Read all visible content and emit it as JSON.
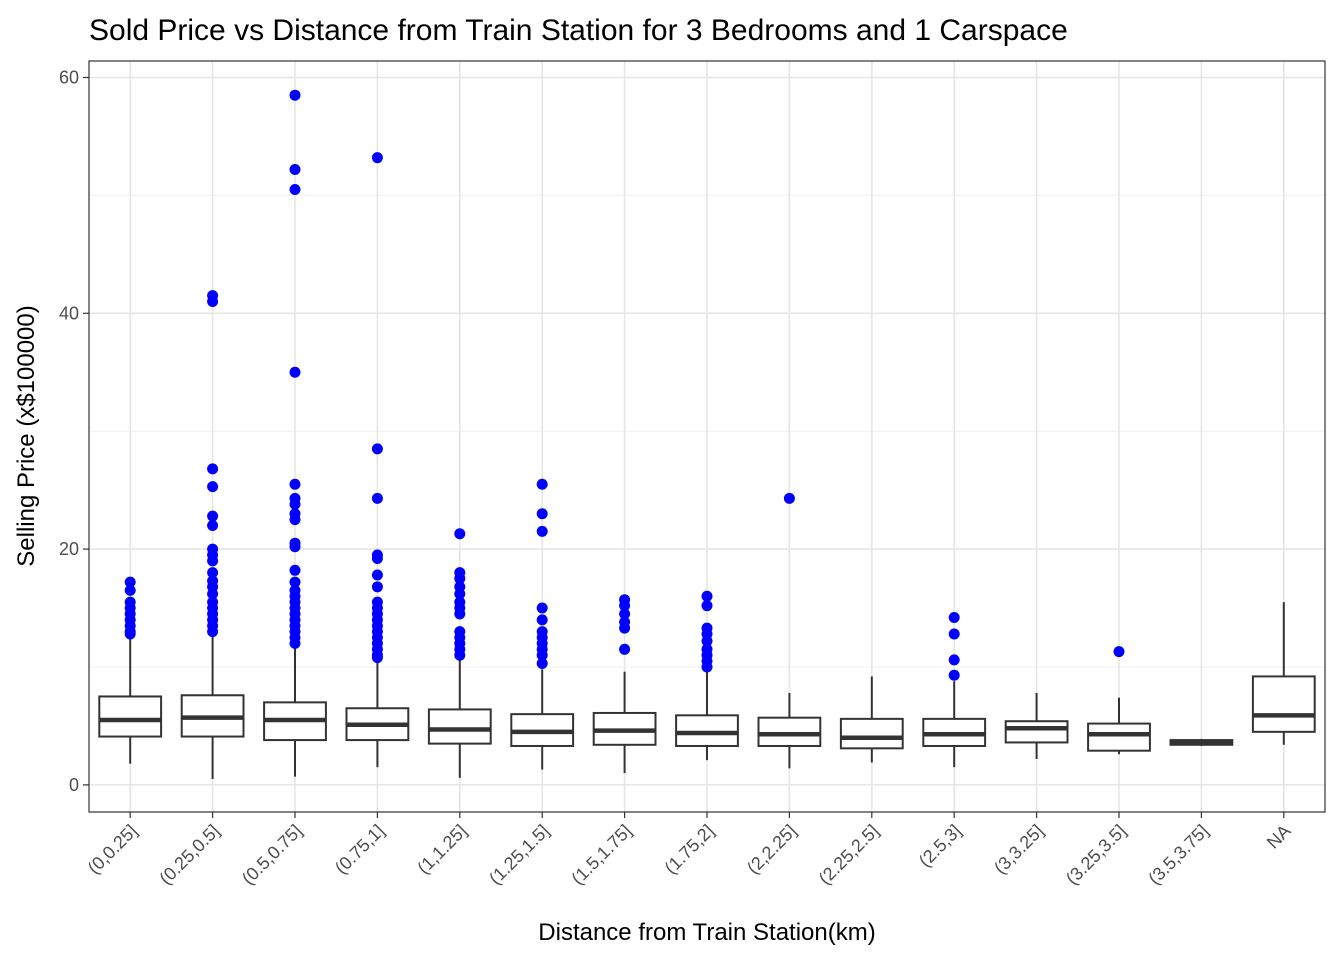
{
  "chart_data": {
    "type": "box",
    "title": "Sold Price vs Distance from Train Station for 3 Bedrooms and 1 Carspace",
    "xlabel": "Distance from Train Station(km)",
    "ylabel": "Selling Price (x$100000)",
    "ylim": [
      -2.3,
      61.4
    ],
    "yticks": [
      0,
      20,
      40,
      60
    ],
    "grid": true,
    "outlier_color": "#0000ff",
    "categories": [
      "(0,0.25]",
      "(0.25,0.5]",
      "(0.5,0.75]",
      "(0.75,1]",
      "(1,1.25]",
      "(1.25,1.5]",
      "(1.5,1.75]",
      "(1.75,2]",
      "(2,2.25]",
      "(2.25,2.5]",
      "(2.5,3]",
      "(3,3.25]",
      "(3.25,3.5]",
      "(3.5,3.75]",
      "NA"
    ],
    "boxes": [
      {
        "min": 1.8,
        "q1": 4.1,
        "median": 5.5,
        "q3": 7.5,
        "max": 12.5,
        "outliers": [
          17.2,
          16.5,
          15.5,
          15.0,
          14.5,
          14.0,
          13.5,
          13.0,
          12.8
        ]
      },
      {
        "min": 0.5,
        "q1": 4.1,
        "median": 5.7,
        "q3": 7.6,
        "max": 12.7,
        "outliers": [
          41.5,
          41.0,
          26.8,
          25.3,
          22.8,
          22.0,
          20.0,
          19.5,
          19.0,
          18.0,
          17.3,
          16.8,
          16.2,
          15.5,
          15.0,
          14.5,
          14.0,
          13.5,
          13.0
        ]
      },
      {
        "min": 0.7,
        "q1": 3.8,
        "median": 5.5,
        "q3": 7.0,
        "max": 11.6,
        "outliers": [
          58.5,
          52.2,
          50.5,
          35.0,
          25.5,
          24.3,
          23.8,
          23.0,
          22.5,
          20.5,
          20.2,
          18.2,
          17.2,
          16.5,
          16.0,
          15.5,
          15.0,
          14.5,
          14.0,
          13.5,
          13.0,
          12.5,
          12.0
        ]
      },
      {
        "min": 1.5,
        "q1": 3.8,
        "median": 5.1,
        "q3": 6.5,
        "max": 10.5,
        "outliers": [
          53.2,
          28.5,
          24.3,
          19.5,
          19.2,
          17.8,
          16.8,
          15.5,
          15.0,
          14.5,
          14.0,
          13.5,
          13.0,
          12.5,
          12.0,
          11.5,
          11.0,
          10.8
        ]
      },
      {
        "min": 0.6,
        "q1": 3.5,
        "median": 4.7,
        "q3": 6.4,
        "max": 10.6,
        "outliers": [
          21.3,
          18.0,
          17.5,
          16.8,
          16.2,
          15.5,
          15.0,
          14.5,
          13.0,
          12.5,
          12.0,
          11.5,
          11.0
        ]
      },
      {
        "min": 1.3,
        "q1": 3.3,
        "median": 4.5,
        "q3": 6.0,
        "max": 9.8,
        "outliers": [
          25.5,
          23.0,
          21.5,
          15.0,
          14.0,
          13.0,
          12.5,
          12.0,
          11.5,
          11.0,
          10.3
        ]
      },
      {
        "min": 1.0,
        "q1": 3.4,
        "median": 4.6,
        "q3": 6.1,
        "max": 9.6,
        "outliers": [
          15.7,
          15.2,
          14.5,
          13.8,
          13.3,
          11.5
        ]
      },
      {
        "min": 2.1,
        "q1": 3.3,
        "median": 4.4,
        "q3": 5.9,
        "max": 9.6,
        "outliers": [
          16.0,
          15.2,
          13.3,
          12.8,
          12.2,
          11.5,
          11.0,
          10.5,
          10.0
        ]
      },
      {
        "min": 1.4,
        "q1": 3.3,
        "median": 4.3,
        "q3": 5.7,
        "max": 7.8,
        "outliers": [
          24.3
        ]
      },
      {
        "min": 1.9,
        "q1": 3.1,
        "median": 4.0,
        "q3": 5.6,
        "max": 9.2,
        "outliers": []
      },
      {
        "min": 1.5,
        "q1": 3.3,
        "median": 4.3,
        "q3": 5.6,
        "max": 8.8,
        "outliers": [
          14.2,
          12.8,
          10.6,
          9.3
        ]
      },
      {
        "min": 2.2,
        "q1": 3.6,
        "median": 4.8,
        "q3": 5.4,
        "max": 7.8,
        "outliers": []
      },
      {
        "min": 2.6,
        "q1": 2.9,
        "median": 4.3,
        "q3": 5.2,
        "max": 7.4,
        "outliers": [
          11.3
        ]
      },
      {
        "min": 3.3,
        "q1": 3.4,
        "median": 3.6,
        "q3": 3.8,
        "max": 3.9,
        "outliers": []
      },
      {
        "min": 3.4,
        "q1": 4.5,
        "median": 5.9,
        "q3": 9.2,
        "max": 15.5,
        "outliers": []
      }
    ]
  }
}
